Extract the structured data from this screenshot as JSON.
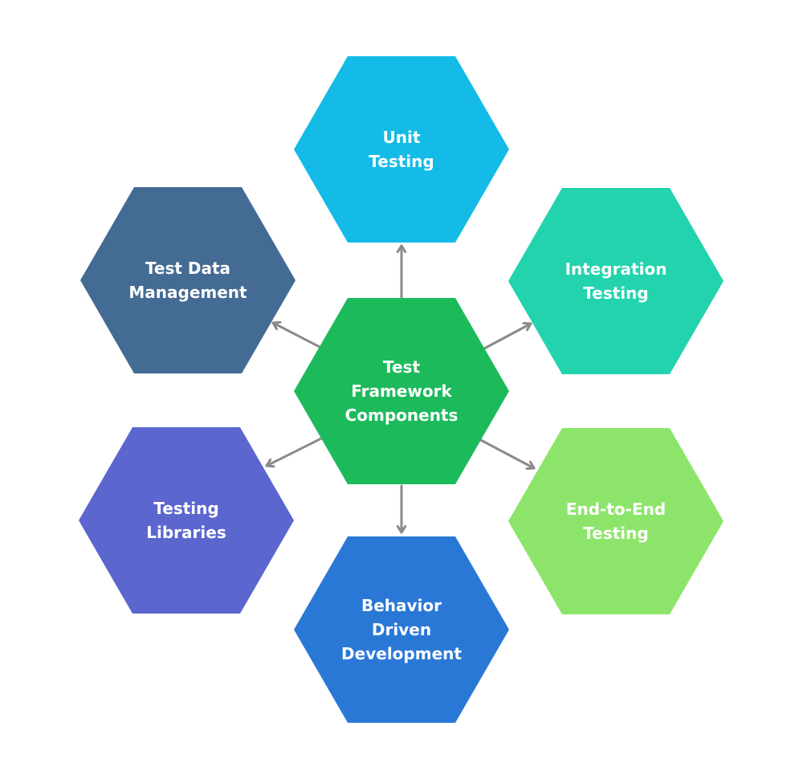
{
  "diagram": {
    "center": {
      "label": "Test\nFramework\nComponents",
      "color": "#1DBA5C"
    },
    "nodes": [
      {
        "id": "unit-testing",
        "label": "Unit\nTesting",
        "color": "#13BBE6"
      },
      {
        "id": "integration-testing",
        "label": "Integration\nTesting",
        "color": "#23D3AD"
      },
      {
        "id": "end-to-end-testing",
        "label": "End-to-End\nTesting",
        "color": "#8CE56A"
      },
      {
        "id": "behavior-driven-development",
        "label": "Behavior\nDriven\nDevelopment",
        "color": "#2A78D6"
      },
      {
        "id": "testing-libraries",
        "label": "Testing\nLibraries",
        "color": "#5B66CF"
      },
      {
        "id": "test-data-management",
        "label": "Test Data\nManagement",
        "color": "#446B93"
      }
    ],
    "arrow_color": "#8A8A8A",
    "background": "#FFFFFF"
  }
}
